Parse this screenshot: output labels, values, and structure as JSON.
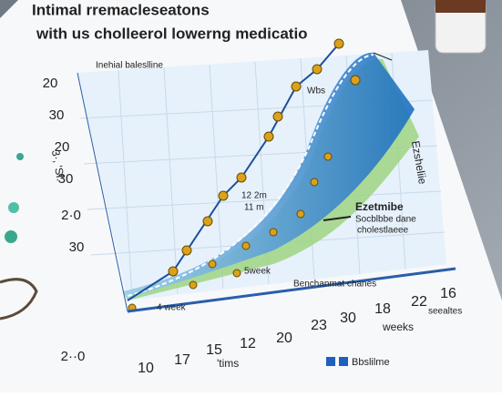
{
  "title": {
    "line1": "Intimal rremacleseatons",
    "line2": "with us cholleerol lowerng medicatio"
  },
  "y_axis": {
    "label": "3·, 'Sf.",
    "ticks": [
      "20",
      "30",
      "20",
      "30",
      "2·0",
      "30",
      "2··0"
    ]
  },
  "x_axis": {
    "ticks": [
      "10",
      "17",
      "15",
      "12",
      "20",
      "23",
      "30",
      "18",
      "22",
      "16"
    ],
    "label": "weeks",
    "sublabel": "'tims",
    "corner": "seealtes"
  },
  "annotations": {
    "baseline": "Inehial baleslline",
    "wbs": "Wbs",
    "right": "Ezsheliie",
    "mid1": "12 2m",
    "mid2": "11 m",
    "drug": "Ezetmibe",
    "drug_sub1": "Socblbbe dane",
    "drug_sub2": "cholestlaeee",
    "week5": "5week",
    "week4": "4 week",
    "bench": "Benchanmat chanes"
  },
  "legend": {
    "label": "Bbslilme"
  }
}
